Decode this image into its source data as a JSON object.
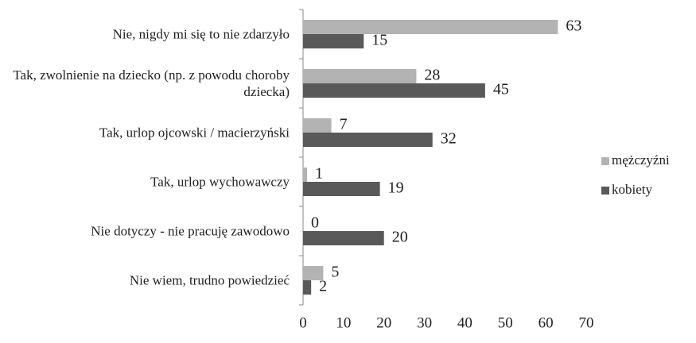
{
  "chart_data": {
    "type": "bar",
    "orientation": "horizontal",
    "categories": [
      "Nie, nigdy mi się to nie zdarzyło",
      "Tak, zwolnienie na dziecko (np. z powodu choroby dziecka)",
      "Tak, urlop ojcowski / macierzyński",
      "Tak, urlop wychowawczy",
      "Nie dotyczy - nie pracuję zawodowo",
      "Nie wiem, trudno powiedzieć"
    ],
    "series": [
      {
        "name": "mężczyźni",
        "color": "#b3b3b3",
        "values": [
          63,
          28,
          7,
          1,
          0,
          5
        ]
      },
      {
        "name": "kobiety",
        "color": "#595959",
        "values": [
          15,
          45,
          32,
          19,
          20,
          2
        ]
      }
    ],
    "xlim": [
      0,
      70
    ],
    "xticks": [
      0,
      10,
      20,
      30,
      40,
      50,
      60,
      70
    ],
    "legend": "right"
  }
}
